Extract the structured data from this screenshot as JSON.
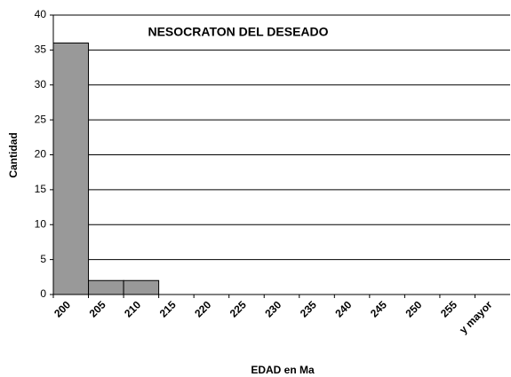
{
  "chart_data": {
    "type": "bar",
    "title": "NESOCRATON DEL DESEADO",
    "x_label": "EDAD en Ma",
    "y_label": "Cantidad",
    "categories": [
      "200",
      "205",
      "210",
      "215",
      "220",
      "225",
      "230",
      "235",
      "240",
      "245",
      "250",
      "255",
      "y mayor"
    ],
    "values": [
      36,
      2,
      2,
      0,
      0,
      0,
      0,
      0,
      0,
      0,
      0,
      0,
      0
    ],
    "color": "#999999",
    "ylim": [
      0,
      40
    ],
    "yticks": [
      0,
      5,
      10,
      15,
      20,
      25,
      30,
      35,
      40
    ],
    "grid": true
  }
}
